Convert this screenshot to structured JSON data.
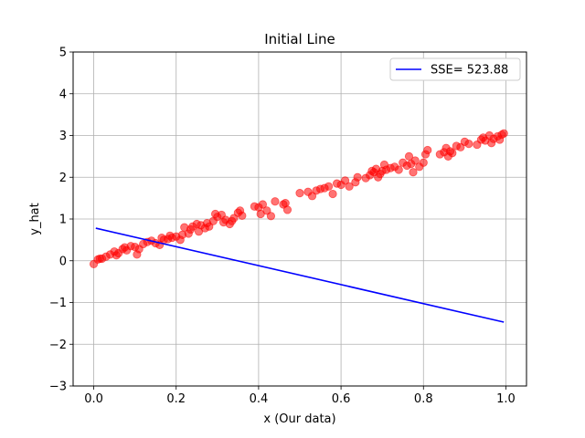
{
  "chart_data": {
    "type": "scatter",
    "title": "Initial Line",
    "xlabel": "x (Our data)",
    "ylabel": "y_hat",
    "xlim": [
      -0.05,
      1.05
    ],
    "ylim": [
      -3,
      5
    ],
    "xticks": [
      0.0,
      0.2,
      0.4,
      0.6,
      0.8,
      1.0
    ],
    "xtick_labels": [
      "0.0",
      "0.2",
      "0.4",
      "0.6",
      "0.8",
      "1.0"
    ],
    "yticks": [
      -3,
      -2,
      -1,
      0,
      1,
      2,
      3,
      4,
      5
    ],
    "ytick_labels": [
      "−3",
      "−2",
      "−1",
      "0",
      "1",
      "2",
      "3",
      "4",
      "5"
    ],
    "grid": true,
    "legend": {
      "position": "top-right",
      "entries": [
        {
          "label": "SSE= 523.88",
          "color": "#0000ff"
        }
      ]
    },
    "series": [
      {
        "type": "scatter",
        "color": "#ff0000",
        "opacity": 0.55,
        "points": [
          [
            0.0,
            -0.08
          ],
          [
            0.01,
            0.03
          ],
          [
            0.015,
            0.05
          ],
          [
            0.02,
            0.05
          ],
          [
            0.03,
            0.1
          ],
          [
            0.04,
            0.15
          ],
          [
            0.05,
            0.22
          ],
          [
            0.055,
            0.13
          ],
          [
            0.06,
            0.18
          ],
          [
            0.07,
            0.28
          ],
          [
            0.075,
            0.32
          ],
          [
            0.08,
            0.25
          ],
          [
            0.09,
            0.35
          ],
          [
            0.1,
            0.33
          ],
          [
            0.105,
            0.15
          ],
          [
            0.11,
            0.28
          ],
          [
            0.12,
            0.4
          ],
          [
            0.13,
            0.45
          ],
          [
            0.14,
            0.48
          ],
          [
            0.15,
            0.42
          ],
          [
            0.16,
            0.38
          ],
          [
            0.165,
            0.55
          ],
          [
            0.17,
            0.5
          ],
          [
            0.18,
            0.52
          ],
          [
            0.185,
            0.6
          ],
          [
            0.19,
            0.55
          ],
          [
            0.2,
            0.58
          ],
          [
            0.21,
            0.5
          ],
          [
            0.215,
            0.62
          ],
          [
            0.22,
            0.8
          ],
          [
            0.23,
            0.65
          ],
          [
            0.235,
            0.75
          ],
          [
            0.24,
            0.82
          ],
          [
            0.25,
            0.88
          ],
          [
            0.255,
            0.7
          ],
          [
            0.26,
            0.85
          ],
          [
            0.27,
            0.78
          ],
          [
            0.275,
            0.9
          ],
          [
            0.28,
            0.82
          ],
          [
            0.29,
            0.95
          ],
          [
            0.295,
            1.12
          ],
          [
            0.3,
            1.05
          ],
          [
            0.31,
            1.1
          ],
          [
            0.315,
            0.92
          ],
          [
            0.32,
            0.98
          ],
          [
            0.33,
            0.88
          ],
          [
            0.335,
            0.95
          ],
          [
            0.34,
            1.02
          ],
          [
            0.35,
            1.15
          ],
          [
            0.355,
            1.2
          ],
          [
            0.36,
            1.08
          ],
          [
            0.39,
            1.3
          ],
          [
            0.4,
            1.28
          ],
          [
            0.405,
            1.12
          ],
          [
            0.41,
            1.35
          ],
          [
            0.42,
            1.2
          ],
          [
            0.43,
            1.07
          ],
          [
            0.44,
            1.42
          ],
          [
            0.46,
            1.35
          ],
          [
            0.465,
            1.38
          ],
          [
            0.47,
            1.22
          ],
          [
            0.5,
            1.62
          ],
          [
            0.52,
            1.65
          ],
          [
            0.53,
            1.55
          ],
          [
            0.54,
            1.68
          ],
          [
            0.55,
            1.72
          ],
          [
            0.56,
            1.74
          ],
          [
            0.57,
            1.78
          ],
          [
            0.58,
            1.6
          ],
          [
            0.59,
            1.85
          ],
          [
            0.6,
            1.82
          ],
          [
            0.61,
            1.92
          ],
          [
            0.62,
            1.78
          ],
          [
            0.635,
            1.88
          ],
          [
            0.64,
            2.0
          ],
          [
            0.66,
            1.98
          ],
          [
            0.67,
            2.05
          ],
          [
            0.675,
            2.15
          ],
          [
            0.68,
            2.12
          ],
          [
            0.685,
            2.2
          ],
          [
            0.69,
            2.0
          ],
          [
            0.695,
            2.08
          ],
          [
            0.7,
            2.15
          ],
          [
            0.705,
            2.3
          ],
          [
            0.71,
            2.18
          ],
          [
            0.72,
            2.22
          ],
          [
            0.73,
            2.25
          ],
          [
            0.74,
            2.18
          ],
          [
            0.75,
            2.35
          ],
          [
            0.76,
            2.28
          ],
          [
            0.765,
            2.5
          ],
          [
            0.77,
            2.32
          ],
          [
            0.775,
            2.12
          ],
          [
            0.78,
            2.4
          ],
          [
            0.79,
            2.25
          ],
          [
            0.8,
            2.35
          ],
          [
            0.805,
            2.55
          ],
          [
            0.81,
            2.65
          ],
          [
            0.84,
            2.55
          ],
          [
            0.85,
            2.6
          ],
          [
            0.855,
            2.7
          ],
          [
            0.86,
            2.5
          ],
          [
            0.865,
            2.62
          ],
          [
            0.87,
            2.58
          ],
          [
            0.88,
            2.75
          ],
          [
            0.89,
            2.72
          ],
          [
            0.9,
            2.85
          ],
          [
            0.91,
            2.8
          ],
          [
            0.93,
            2.78
          ],
          [
            0.94,
            2.9
          ],
          [
            0.945,
            2.95
          ],
          [
            0.95,
            2.88
          ],
          [
            0.96,
            3.0
          ],
          [
            0.965,
            2.82
          ],
          [
            0.97,
            2.92
          ],
          [
            0.98,
            2.98
          ],
          [
            0.985,
            2.9
          ],
          [
            0.99,
            3.02
          ],
          [
            0.995,
            3.05
          ]
        ]
      },
      {
        "type": "line",
        "color": "#0000ff",
        "x": [
          0.005,
          0.995
        ],
        "y": [
          0.78,
          -1.47
        ]
      }
    ]
  }
}
